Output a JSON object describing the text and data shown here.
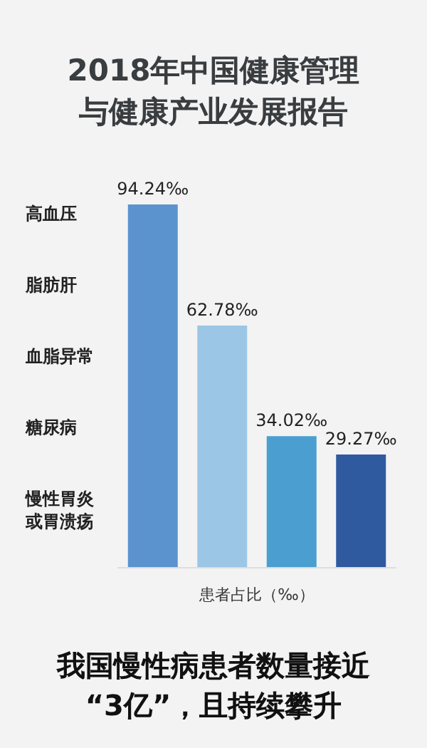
{
  "chart_data": {
    "type": "bar",
    "title": "2018年中国健康管理与健康产业发展报告",
    "subtitle": "我国慢性病患者数量接近“3亿”，且持续攀升",
    "xlabel": "患者占比（‰）",
    "categories": [
      null,
      null,
      null,
      null
    ],
    "values": [
      94.24,
      62.78,
      34.02,
      29.27
    ],
    "value_labels": [
      "94.24‰",
      "62.78‰",
      "34.02‰",
      "29.27‰"
    ],
    "colors": [
      "#5b93cf",
      "#9cc6e6",
      "#4a9fd0",
      "#2f5aa0"
    ],
    "annotations": [
      "高血压",
      "脂肪肝",
      "血脂异常",
      "糖尿病",
      "慢性胃炎或胃溃疡"
    ]
  }
}
